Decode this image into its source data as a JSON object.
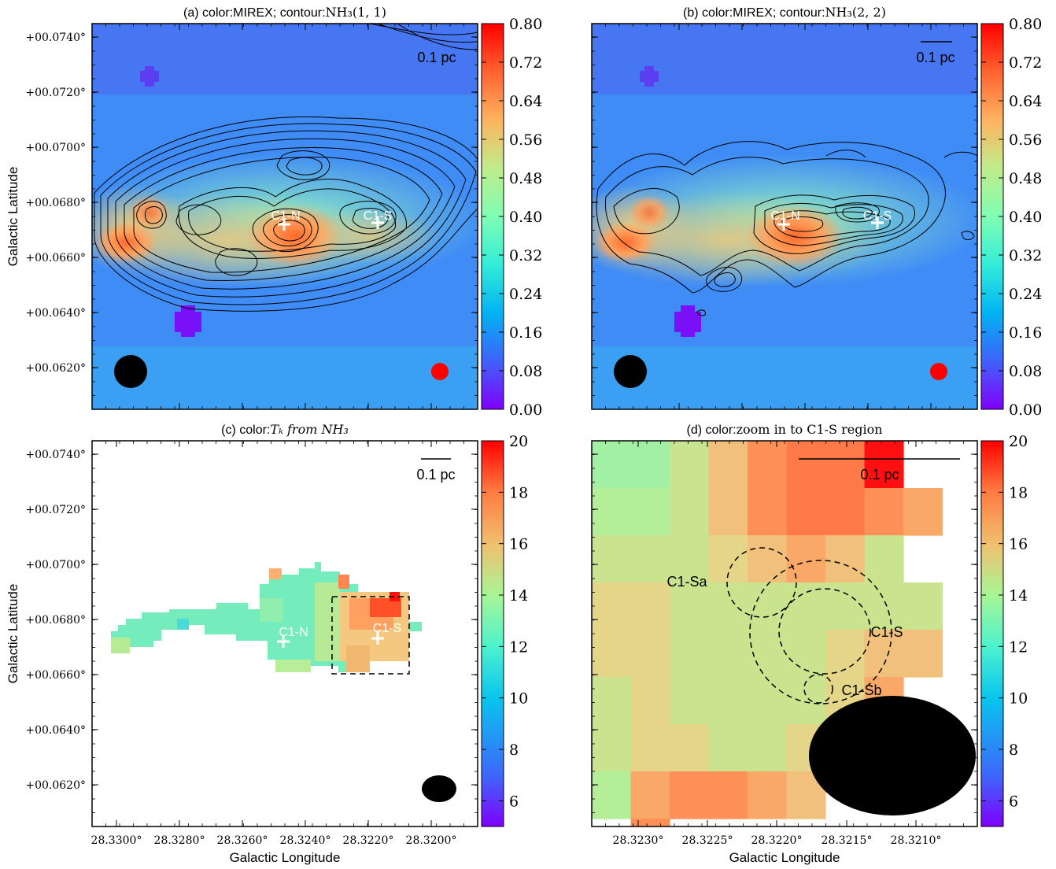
{
  "figure": {
    "ylabel": "Galactic Latitude",
    "xlabel": "Galactic Longitude"
  },
  "panels": [
    {
      "id": "a",
      "title_plain": "(a) color:MIREX; contour:",
      "title_math": "NH₃(1, 1)",
      "yticks": [
        "+00.0740°",
        "+00.0720°",
        "+00.0700°",
        "+00.0680°",
        "+00.0660°",
        "+00.0640°",
        "+00.0620°"
      ],
      "xticks": [],
      "ylabel": "Galactic Latitude",
      "xlabel": "",
      "scalebar": "0.1 pc",
      "sources": [
        "C1-N",
        "C1-S"
      ],
      "colorbar_ticks": [
        "0.80",
        "0.72",
        "0.64",
        "0.56",
        "0.48",
        "0.40",
        "0.32",
        "0.24",
        "0.16",
        "0.08",
        "0.00"
      ]
    },
    {
      "id": "b",
      "title_plain": "(b) color:MIREX; contour:",
      "title_math": "NH₃(2, 2)",
      "yticks": [],
      "xticks": [],
      "ylabel": "",
      "xlabel": "",
      "scalebar": "0.1 pc",
      "sources": [
        "C1-N",
        "C1-S"
      ],
      "colorbar_ticks": [
        "0.80",
        "0.72",
        "0.64",
        "0.56",
        "0.48",
        "0.40",
        "0.32",
        "0.24",
        "0.16",
        "0.08",
        "0.00"
      ]
    },
    {
      "id": "c",
      "title_plain": "(c) color:",
      "title_math": "Tₖ from NH₃",
      "yticks": [
        "+00.0740°",
        "+00.0720°",
        "+00.0700°",
        "+00.0680°",
        "+00.0660°",
        "+00.0640°",
        "+00.0620°"
      ],
      "xticks": [
        "28.3300°",
        "28.3280°",
        "28.3260°",
        "28.3240°",
        "28.3220°",
        "28.3200°"
      ],
      "ylabel": "Galactic Latitude",
      "xlabel": "Galactic Longitude",
      "scalebar": "0.1 pc",
      "sources": [
        "C1-N",
        "C1-S"
      ],
      "colorbar_ticks": [
        "20",
        "18",
        "16",
        "14",
        "12",
        "10",
        "8",
        "6"
      ]
    },
    {
      "id": "d",
      "title_plain": "(d) color:",
      "title_math": "zoom in to C1-S region",
      "yticks": [],
      "xticks": [
        "28.3230°",
        "28.3225°",
        "28.3220°",
        "28.3215°",
        "28.3210°"
      ],
      "ylabel": "",
      "xlabel": "Galactic Longitude",
      "scalebar": "0.1 pc",
      "sources": [
        "C1-Sa",
        "C1-S",
        "C1-Sb"
      ],
      "colorbar_ticks": [
        "20",
        "18",
        "16",
        "14",
        "12",
        "10",
        "8",
        "6"
      ]
    }
  ],
  "chart_data": [
    {
      "type": "heatmap",
      "panel": "a",
      "title": "(a) color:MIREX; contour:NH3(1,1)",
      "colormap": "rainbow",
      "color_range": [
        0.0,
        0.8
      ],
      "ylabel": "Galactic Latitude",
      "ylim": [
        0.0605,
        0.0745
      ],
      "contours": "NH3(1,1)",
      "markers": [
        {
          "label": "C1-N",
          "l": 28.325,
          "b": 0.06728
        },
        {
          "label": "C1-S",
          "l": 28.3218,
          "b": 0.06728
        }
      ],
      "beams": [
        {
          "color": "#000000",
          "l": 28.3301,
          "b": 0.06195
        },
        {
          "color": "#ff0000",
          "l": 28.3197,
          "b": 0.06195
        }
      ]
    },
    {
      "type": "heatmap",
      "panel": "b",
      "title": "(b) color:MIREX; contour:NH3(2,2)",
      "colormap": "rainbow",
      "color_range": [
        0.0,
        0.8
      ],
      "contours": "NH3(2,2)",
      "markers": [
        {
          "label": "C1-N",
          "l": 28.325,
          "b": 0.06728
        },
        {
          "label": "C1-S",
          "l": 28.3218,
          "b": 0.06728
        }
      ]
    },
    {
      "type": "heatmap",
      "panel": "c",
      "title": "(c) color:Tk from NH3",
      "colormap": "rainbow",
      "color_range": [
        5,
        20
      ],
      "xlabel": "Galactic Longitude",
      "ylabel": "Galactic Latitude",
      "xlim": [
        28.3314,
        28.3184
      ],
      "ylim": [
        0.0605,
        0.0745
      ],
      "zoom_box": {
        "l": [
          28.3232,
          28.3205
        ],
        "b": [
          0.06605,
          0.06885
        ]
      }
    },
    {
      "type": "heatmap",
      "panel": "d",
      "title": "(d) color:zoom in to C1-S region",
      "colormap": "rainbow",
      "color_range": [
        5,
        20
      ],
      "xlabel": "Galactic Longitude",
      "xlim": [
        28.3232,
        28.3205
      ],
      "cores": [
        "C1-Sa",
        "C1-S",
        "C1-Sb"
      ]
    }
  ]
}
